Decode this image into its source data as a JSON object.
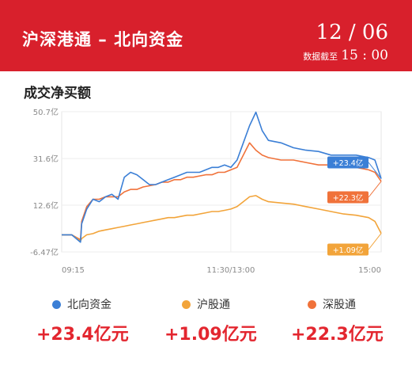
{
  "header": {
    "title": "沪深港通 – 北向资金",
    "date": "12 / 06",
    "cutoff_label": "数据截至",
    "cutoff_time": "15 : 00",
    "bg_color": "#d8202c"
  },
  "section_title": "成交净买额",
  "chart_data": {
    "type": "line",
    "y_tick_labels": [
      "50.7亿",
      "31.6亿",
      "12.6亿",
      "-6.47亿"
    ],
    "x_tick_labels": [
      "09:15",
      "11:30/13:00",
      "15:00"
    ],
    "ylim": [
      -6.47,
      50.7
    ],
    "y_unit": "亿元",
    "grid": true,
    "x": [
      "09:15",
      "09:23",
      "09:30",
      "09:31",
      "09:35",
      "09:40",
      "09:45",
      "09:50",
      "09:55",
      "10:00",
      "10:05",
      "10:10",
      "10:15",
      "10:20",
      "10:25",
      "10:30",
      "10:35",
      "10:40",
      "10:45",
      "10:50",
      "10:55",
      "11:00",
      "11:05",
      "11:10",
      "11:15",
      "11:20",
      "11:25",
      "11:30",
      "13:05",
      "13:10",
      "13:15",
      "13:20",
      "13:25",
      "13:30",
      "13:40",
      "13:50",
      "14:00",
      "14:10",
      "14:20",
      "14:30",
      "14:40",
      "14:50",
      "14:55",
      "15:00"
    ],
    "series": [
      {
        "name": "北向资金",
        "color": "#3b7fd6",
        "values": [
          0.5,
          0.5,
          -2.5,
          5,
          11,
          15,
          14,
          16,
          17,
          15,
          24,
          26,
          25,
          23,
          21,
          21,
          22,
          23,
          24,
          25,
          26,
          26,
          26,
          27,
          28,
          28,
          29,
          28,
          31,
          38,
          45,
          50.5,
          43,
          39,
          38,
          36,
          35,
          34.5,
          33,
          33,
          33,
          32,
          31,
          23.4
        ]
      },
      {
        "name": "沪股通",
        "color": "#f2a43a",
        "values": [
          0.5,
          0.5,
          -2,
          -1,
          0.5,
          1,
          2,
          2.5,
          3,
          3.5,
          4,
          4.5,
          5,
          5.5,
          6,
          6.5,
          7,
          7.5,
          7.5,
          8,
          8.5,
          8.5,
          9,
          9.5,
          10,
          10,
          10.5,
          11,
          12,
          14,
          16,
          16.5,
          15,
          14,
          13.5,
          13,
          12,
          11,
          10,
          9,
          8.5,
          7.5,
          6,
          1.09
        ]
      },
      {
        "name": "深股通",
        "color": "#f0723a",
        "values": [
          0.5,
          0.5,
          -1.5,
          6,
          12,
          15,
          15,
          16,
          16,
          16,
          18,
          19,
          19,
          20,
          20.5,
          21,
          22,
          22,
          23,
          23,
          24,
          24,
          24.5,
          25,
          25,
          26,
          26,
          27,
          28,
          33,
          38,
          35,
          33,
          32,
          31,
          31,
          30,
          29,
          29,
          28.5,
          28,
          27,
          26,
          22.3
        ]
      }
    ],
    "end_labels": [
      "+23.4亿",
      "+22.3亿",
      "+1.09亿"
    ]
  },
  "legend": [
    {
      "name": "北向资金",
      "color": "#3b7fd6",
      "total": "+23.4亿元"
    },
    {
      "name": "沪股通",
      "color": "#f2a43a",
      "total": "+1.09亿元"
    },
    {
      "name": "深股通",
      "color": "#f0723a",
      "total": "+22.3亿元"
    }
  ]
}
